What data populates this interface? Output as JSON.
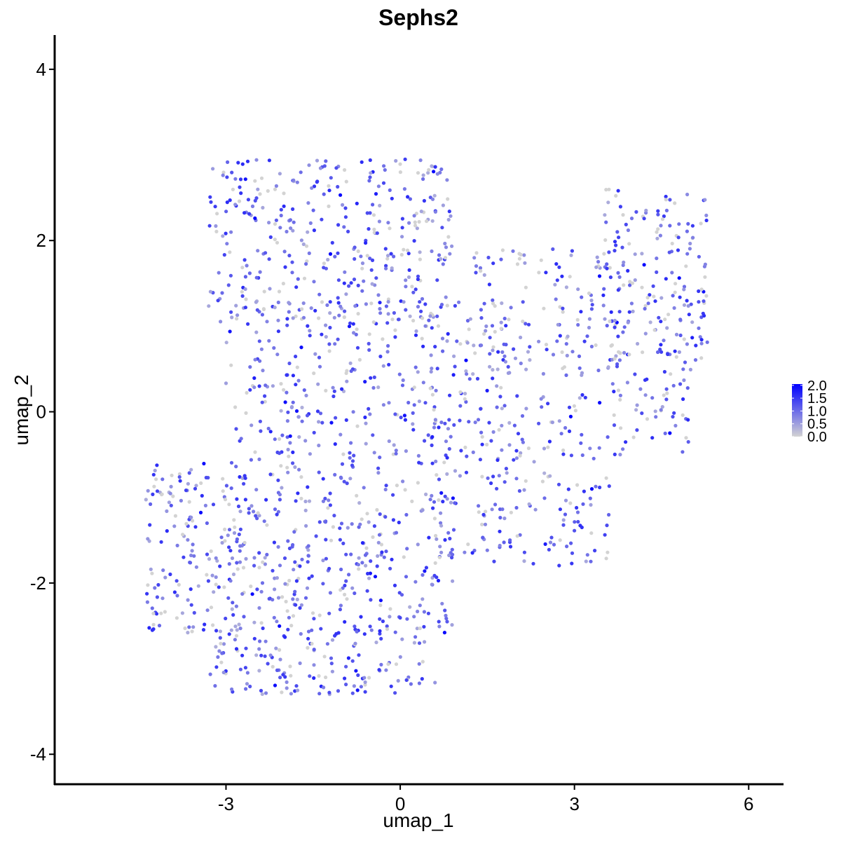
{
  "chart_data": {
    "type": "scatter",
    "title": "Sephs2",
    "xlabel": "umap_1",
    "ylabel": "umap_2",
    "xlim": [
      -5.95,
      6.6
    ],
    "ylim": [
      -4.35,
      4.4
    ],
    "x_ticks": [
      -3,
      0,
      3,
      6
    ],
    "x_tick_labels": [
      "-3",
      "0",
      "3",
      "6"
    ],
    "y_ticks": [
      -4,
      -2,
      0,
      2,
      4
    ],
    "y_tick_labels": [
      "-4",
      "-2",
      "0",
      "2",
      "4"
    ],
    "grid": false,
    "legend_position": "right",
    "color_scale": {
      "low_color": "#D3D3D3",
      "high_color": "#0000FF",
      "min": 0,
      "max": 2.05,
      "breaks": [
        2.0,
        1.5,
        1.0,
        0.5,
        0.0
      ],
      "break_labels": [
        "2.0",
        "1.5",
        "1.0",
        "0.5",
        "0.0"
      ]
    },
    "point_sampling": {
      "count": 1900,
      "seed": 7,
      "regions": [
        {
          "xmin": -3.3,
          "xmax": 0.9,
          "ymin": 1.0,
          "ymax": 2.95,
          "weight": 0.18
        },
        {
          "xmin": -3.0,
          "xmax": 1.8,
          "ymin": -0.6,
          "ymax": 1.3,
          "weight": 0.17
        },
        {
          "xmin": -4.4,
          "xmax": 0.9,
          "ymin": -2.6,
          "ymax": -0.6,
          "weight": 0.27
        },
        {
          "xmin": -3.3,
          "xmax": 0.6,
          "ymin": -3.3,
          "ymax": -2.5,
          "weight": 0.08
        },
        {
          "xmin": 0.5,
          "xmax": 3.6,
          "ymin": -1.8,
          "ymax": 0.2,
          "weight": 0.1
        },
        {
          "xmin": 1.2,
          "xmax": 3.8,
          "ymin": 0.4,
          "ymax": 1.9,
          "weight": 0.07
        },
        {
          "xmin": 3.5,
          "xmax": 5.3,
          "ymin": 0.6,
          "ymax": 2.6,
          "weight": 0.1
        },
        {
          "xmin": 3.6,
          "xmax": 5.0,
          "ymin": -0.5,
          "ymax": 0.7,
          "weight": 0.03
        }
      ]
    }
  }
}
